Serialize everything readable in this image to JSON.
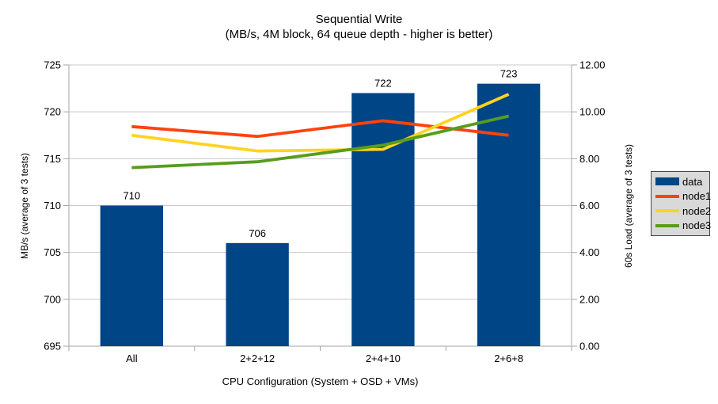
{
  "colors": {
    "bar": "#004586",
    "node1": "#FF420E",
    "node2": "#FFD320",
    "node3": "#579D1C",
    "grid": "#C8C8C8",
    "axis": "#A6A6A6",
    "text": "#000000",
    "background": "#FFFFFF",
    "legend_bg": "#D9D9D9",
    "legend_border": "#454545"
  },
  "chart_data": {
    "type": "combo-bar-line",
    "title": "Sequential Write",
    "subtitle": "(MB/s, 4M block, 64 queue depth - higher is better)",
    "xlabel": "CPU Configuration (System + OSD + VMs)",
    "ylabel_left": "MB/s (average of 3 tests)",
    "ylabel_right": "60s Load (average of 3 tests)",
    "categories": [
      "All",
      "2+2+12",
      "2+4+10",
      "2+6+8"
    ],
    "bar_series": {
      "name": "data",
      "axis": "left",
      "color_key": "bar",
      "values": [
        710,
        706,
        722,
        723
      ],
      "data_labels": [
        "710",
        "706",
        "722",
        "723"
      ]
    },
    "line_series": [
      {
        "name": "node1",
        "axis": "right",
        "color_key": "node1",
        "values": [
          9.37,
          8.95,
          9.62,
          9.0
        ]
      },
      {
        "name": "node2",
        "axis": "right",
        "color_key": "node2",
        "values": [
          9.0,
          8.33,
          8.4,
          10.75
        ]
      },
      {
        "name": "node3",
        "axis": "right",
        "color_key": "node3",
        "values": [
          7.62,
          7.87,
          8.58,
          9.82
        ]
      }
    ],
    "y_left": {
      "min": 695,
      "max": 725,
      "step": 5,
      "tick_labels": [
        "695",
        "700",
        "705",
        "710",
        "715",
        "720",
        "725"
      ]
    },
    "y_right": {
      "min": 0,
      "max": 12,
      "step": 2,
      "tick_labels": [
        "0.00",
        "2.00",
        "4.00",
        "6.00",
        "8.00",
        "10.00",
        "12.00"
      ]
    },
    "grid": true,
    "legend": {
      "position": "right",
      "items": [
        {
          "label": "data",
          "swatch": "rect",
          "color_key": "bar"
        },
        {
          "label": "node1",
          "swatch": "line",
          "color_key": "node1"
        },
        {
          "label": "node2",
          "swatch": "line",
          "color_key": "node2"
        },
        {
          "label": "node3",
          "swatch": "line",
          "color_key": "node3"
        }
      ]
    }
  }
}
